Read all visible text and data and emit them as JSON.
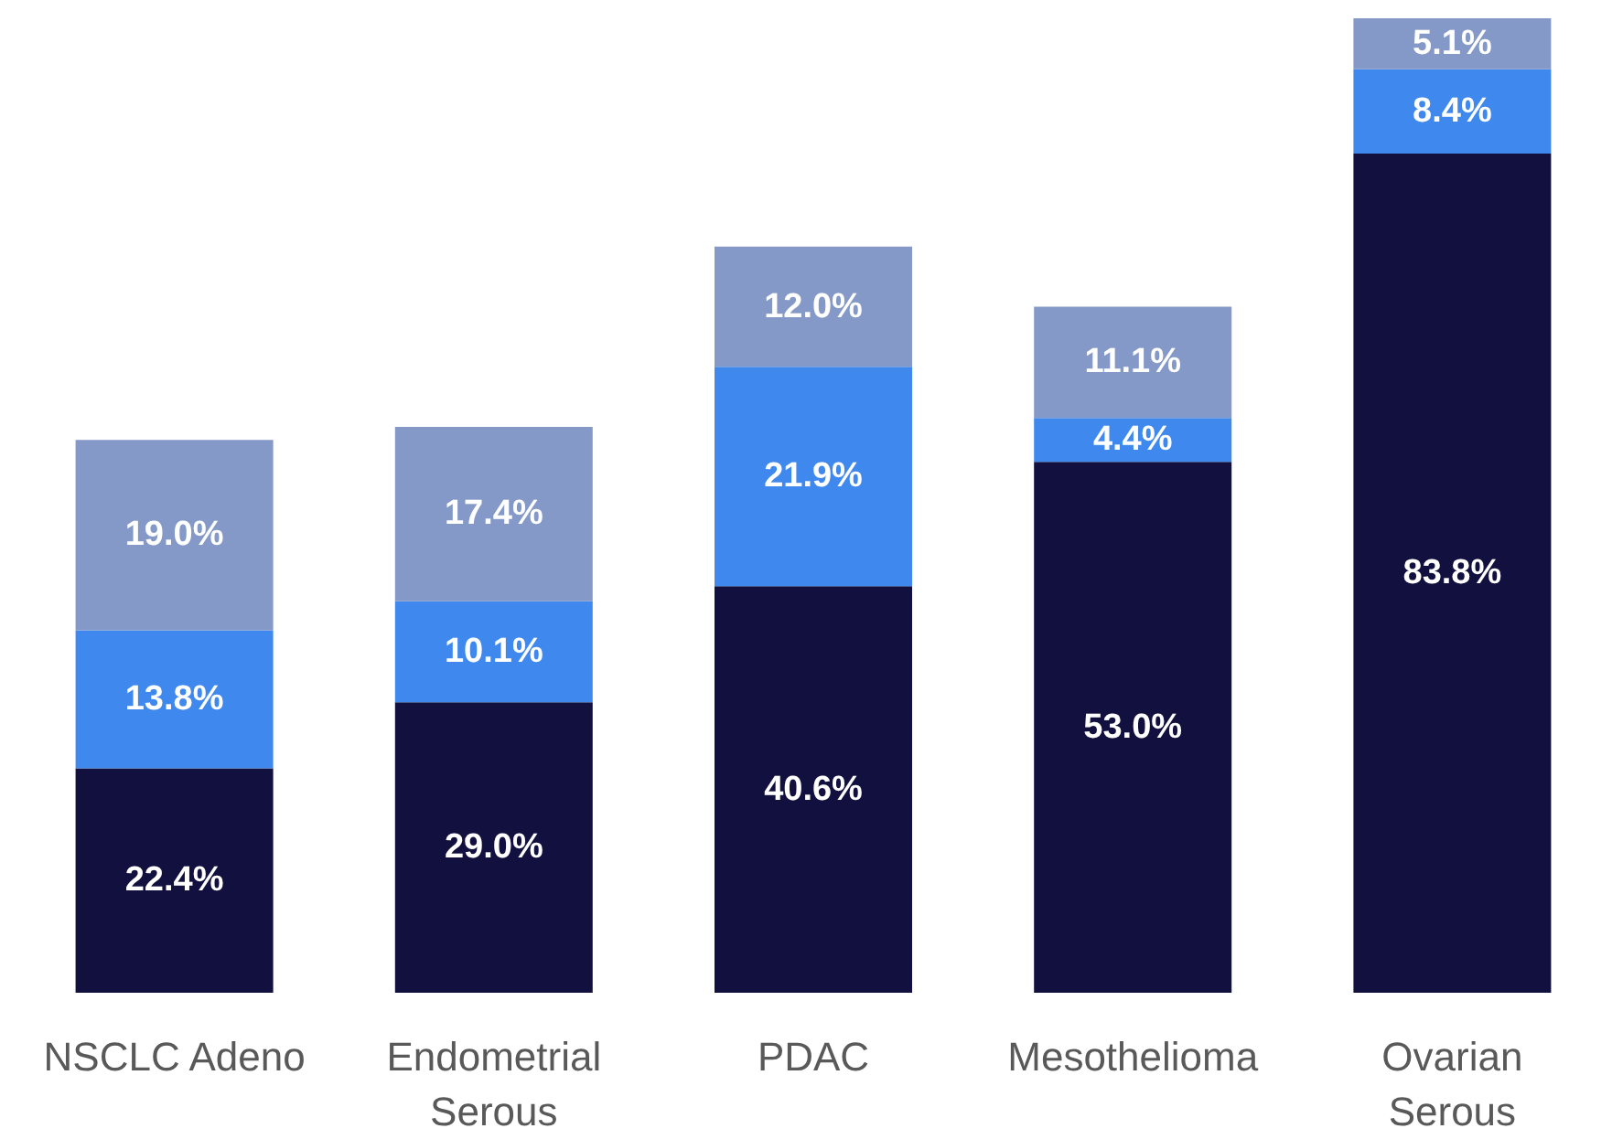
{
  "chart_data": {
    "type": "bar",
    "stacked": true,
    "categories": [
      "NSCLC Adeno",
      "Endometrial Serous",
      "PDAC",
      "Mesothelioma",
      "Ovarian Serous"
    ],
    "ylim": [
      0,
      97.3
    ],
    "series": [
      {
        "color": "#12103f",
        "values": [
          22.4,
          29.0,
          40.6,
          53.0,
          83.8
        ],
        "value_labels": [
          "22.4%",
          "29.0%",
          "40.6%",
          "53.0%",
          "83.8%"
        ]
      },
      {
        "color": "#3f88ee",
        "values": [
          13.8,
          10.1,
          21.9,
          4.4,
          8.4
        ],
        "value_labels": [
          "13.8%",
          "10.1%",
          "21.9%",
          "4.4%",
          "8.4%"
        ]
      },
      {
        "color": "#8499c8",
        "values": [
          19.0,
          17.4,
          12.0,
          11.1,
          5.1
        ],
        "value_labels": [
          "19.0%",
          "17.4%",
          "12.0%",
          "11.1%",
          "5.1%"
        ]
      }
    ]
  }
}
